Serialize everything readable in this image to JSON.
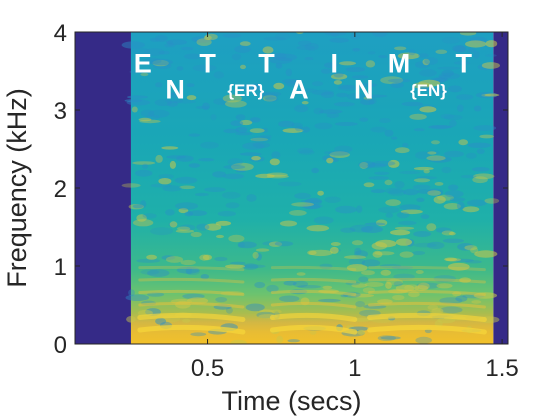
{
  "chart_data": {
    "type": "heatmap",
    "title": "",
    "xlabel": "Time (secs)",
    "ylabel": "Frequency (kHz)",
    "xlim": [
      0.05,
      1.52
    ],
    "ylim": [
      0,
      4
    ],
    "xticks": [
      0.5,
      1,
      1.5
    ],
    "xtick_labels": [
      "0.5",
      "1",
      "1.5"
    ],
    "yticks": [
      0,
      1,
      2,
      3,
      4
    ],
    "ytick_labels": [
      "0",
      "1",
      "2",
      "3",
      "4"
    ],
    "grid": false,
    "colormap": "parula",
    "silence_color": "#352a87",
    "speech_interval": [
      0.24,
      1.47
    ],
    "phoneme_labels": [
      {
        "text": "E",
        "t": 0.28,
        "f": 3.48,
        "size": "big"
      },
      {
        "text": "N",
        "t": 0.39,
        "f": 3.15,
        "size": "big"
      },
      {
        "text": "T",
        "t": 0.5,
        "f": 3.48,
        "size": "big"
      },
      {
        "text": "{ER}",
        "t": 0.63,
        "f": 3.18,
        "size": "small"
      },
      {
        "text": "T",
        "t": 0.7,
        "f": 3.48,
        "size": "big"
      },
      {
        "text": "A",
        "t": 0.81,
        "f": 3.15,
        "size": "big"
      },
      {
        "text": "I",
        "t": 0.93,
        "f": 3.48,
        "size": "big"
      },
      {
        "text": "N",
        "t": 1.03,
        "f": 3.15,
        "size": "big"
      },
      {
        "text": "M",
        "t": 1.15,
        "f": 3.48,
        "size": "big"
      },
      {
        "text": "{EN}",
        "t": 1.25,
        "f": 3.18,
        "size": "small"
      },
      {
        "text": "T",
        "t": 1.37,
        "f": 3.48,
        "size": "big"
      }
    ]
  }
}
